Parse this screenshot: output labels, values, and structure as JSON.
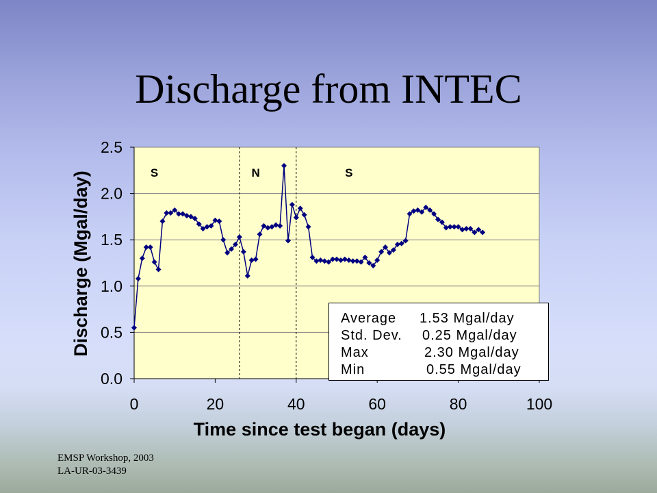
{
  "slide": {
    "title": "Discharge from INTEC",
    "footer": {
      "line1": "EMSP Workshop, 2003",
      "line2": "LA-UR-03-3439"
    }
  },
  "chart_data": {
    "type": "line",
    "title": "",
    "xlabel": "Time since test began (days)",
    "ylabel": "Discharge (Mgal/day)",
    "xlim": [
      0,
      100
    ],
    "ylim": [
      0,
      2.5
    ],
    "xticks": [
      "0",
      "20",
      "40",
      "60",
      "80",
      "100"
    ],
    "yticks": [
      "0.0",
      "0.5",
      "1.0",
      "1.5",
      "2.0",
      "2.5"
    ],
    "grid": {
      "y": true,
      "x": false
    },
    "colors": {
      "plot_background": "#ffffcc",
      "grid": "#808080",
      "axis": "#000000"
    },
    "x": [
      0,
      1,
      2,
      3,
      4,
      5,
      6,
      7,
      8,
      9,
      10,
      11,
      12,
      13,
      14,
      15,
      16,
      17,
      18,
      19,
      20,
      21,
      22,
      23,
      24,
      25,
      26,
      27,
      28,
      29,
      30,
      31,
      32,
      33,
      34,
      35,
      36,
      37,
      38,
      39,
      40,
      41,
      42,
      43,
      44,
      45,
      46,
      47,
      48,
      49,
      50,
      51,
      52,
      53,
      54,
      55,
      56,
      57,
      58,
      59,
      60,
      61,
      62,
      63,
      64,
      65,
      66,
      67,
      68,
      69,
      70,
      71,
      72,
      73,
      74,
      75,
      76,
      77,
      78,
      79,
      80,
      81,
      82,
      83,
      84,
      85,
      86
    ],
    "series": [
      {
        "color": "#000080",
        "values": [
          0.55,
          1.08,
          1.3,
          1.42,
          1.42,
          1.26,
          1.18,
          1.7,
          1.79,
          1.79,
          1.82,
          1.78,
          1.78,
          1.76,
          1.75,
          1.73,
          1.67,
          1.62,
          1.64,
          1.65,
          1.71,
          1.7,
          1.5,
          1.36,
          1.4,
          1.45,
          1.53,
          1.37,
          1.11,
          1.28,
          1.29,
          1.56,
          1.65,
          1.63,
          1.64,
          1.66,
          1.65,
          2.3,
          1.49,
          1.88,
          1.74,
          1.84,
          1.77,
          1.64,
          1.31,
          1.27,
          1.28,
          1.27,
          1.26,
          1.29,
          1.29,
          1.28,
          1.29,
          1.28,
          1.27,
          1.27,
          1.26,
          1.31,
          1.25,
          1.22,
          1.28,
          1.37,
          1.42,
          1.36,
          1.39,
          1.45,
          1.46,
          1.49,
          1.78,
          1.81,
          1.82,
          1.8,
          1.85,
          1.82,
          1.78,
          1.72,
          1.69,
          1.63,
          1.64,
          1.64,
          1.64,
          1.61,
          1.62,
          1.62,
          1.58,
          1.61,
          1.58
        ]
      }
    ],
    "reference_lines": [
      {
        "x": 26,
        "style": "dashed"
      },
      {
        "x": 40,
        "style": "dashed"
      }
    ],
    "annotations": [
      {
        "text": "S",
        "x": 5
      },
      {
        "text": "N",
        "x": 30
      },
      {
        "text": "S",
        "x": 53
      }
    ],
    "summary": [
      {
        "label": "Average",
        "value": "1.53 Mgal/day"
      },
      {
        "label": "Std. Dev.",
        "value": "0.25 Mgal/day"
      },
      {
        "label": "Max",
        "value": "2.30 Mgal/day"
      },
      {
        "label": "Min",
        "value": "0.55 Mgal/day"
      }
    ]
  }
}
